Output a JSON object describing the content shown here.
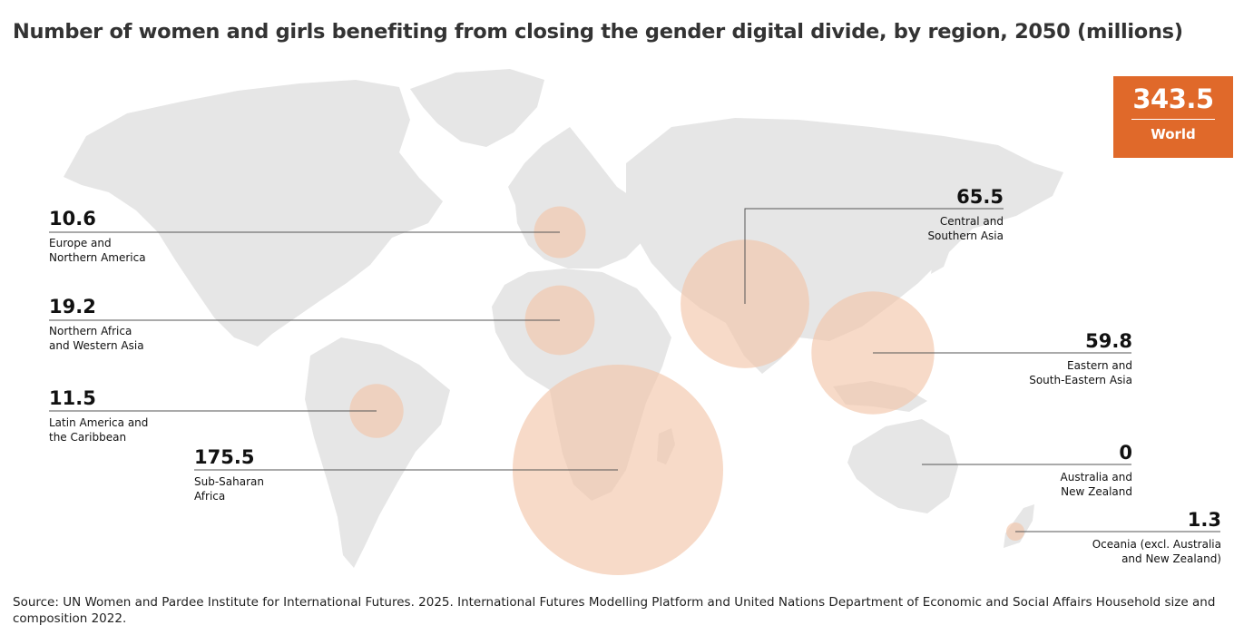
{
  "title": "Number of women and girls benefiting from closing the gender digital divide, by region, 2050 (millions)",
  "world_total": {
    "value": "343.5",
    "label": "World"
  },
  "regions": [
    {
      "id": "europe-northern-america",
      "value": "10.6",
      "label": "Europe and\nNorthern America"
    },
    {
      "id": "northern-africa-western-asia",
      "value": "19.2",
      "label": "Northern Africa\nand Western Asia"
    },
    {
      "id": "latin-america-caribbean",
      "value": "11.5",
      "label": "Latin America and\nthe Caribbean"
    },
    {
      "id": "sub-saharan-africa",
      "value": "175.5",
      "label": "Sub-Saharan\nAfrica"
    },
    {
      "id": "central-southern-asia",
      "value": "65.5",
      "label": "Central and\nSouthern Asia"
    },
    {
      "id": "eastern-south-eastern-asia",
      "value": "59.8",
      "label": "Eastern and\nSouth-Eastern Asia"
    },
    {
      "id": "australia-new-zealand",
      "value": "0",
      "label": "Australia and\nNew Zealand"
    },
    {
      "id": "oceania-excl",
      "value": "1.3",
      "label": "Oceania (excl. Australia\nand New Zealand)"
    }
  ],
  "source": "Source: UN Women and Pardee Institute for International Futures. 2025. International Futures Modelling Platform and United Nations Department of Economic and Social Affairs Household size and composition 2022.",
  "colors": {
    "accent": "#e0692a",
    "bubble": "#f2c3a6",
    "land": "#e6e6e6",
    "leader": "#555555"
  }
}
